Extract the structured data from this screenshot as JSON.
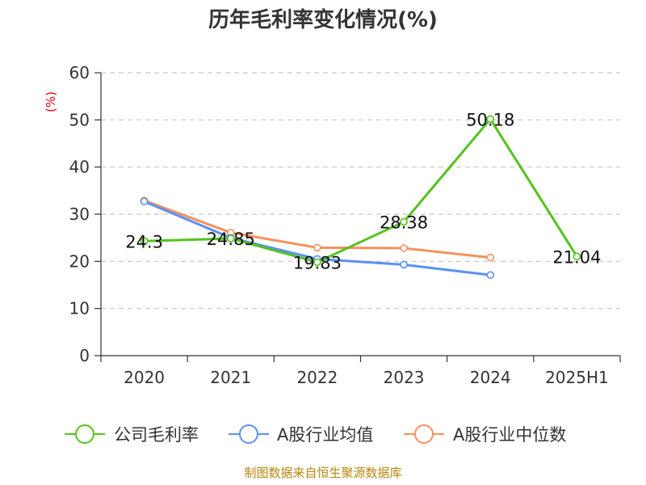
{
  "chart_data": {
    "type": "line",
    "title": "历年毛利率变化情况(%)",
    "ylabel": "(%)",
    "xlabel": "",
    "categories": [
      "2020",
      "2021",
      "2022",
      "2023",
      "2024",
      "2025H1"
    ],
    "ylim": [
      0,
      60
    ],
    "yticks": [
      0,
      10,
      20,
      30,
      40,
      50,
      60
    ],
    "grid": true,
    "legend_position": "bottom",
    "series": [
      {
        "name": "公司毛利率",
        "color": "#52c41a",
        "values": [
          24.3,
          24.85,
          19.83,
          28.38,
          50.18,
          21.04
        ],
        "labels": [
          "24.3",
          "24.85",
          "19.83",
          "28.38",
          "50.18",
          "21.04"
        ]
      },
      {
        "name": "A股行业均值",
        "color": "#5b8ff9",
        "values": [
          32.7,
          25.0,
          20.5,
          19.3,
          17.1,
          null
        ]
      },
      {
        "name": "A股行业中位数",
        "color": "#f4915b",
        "values": [
          32.9,
          26.1,
          22.9,
          22.8,
          20.8,
          null
        ]
      }
    ]
  },
  "source": "制图数据来自恒生聚源数据库"
}
